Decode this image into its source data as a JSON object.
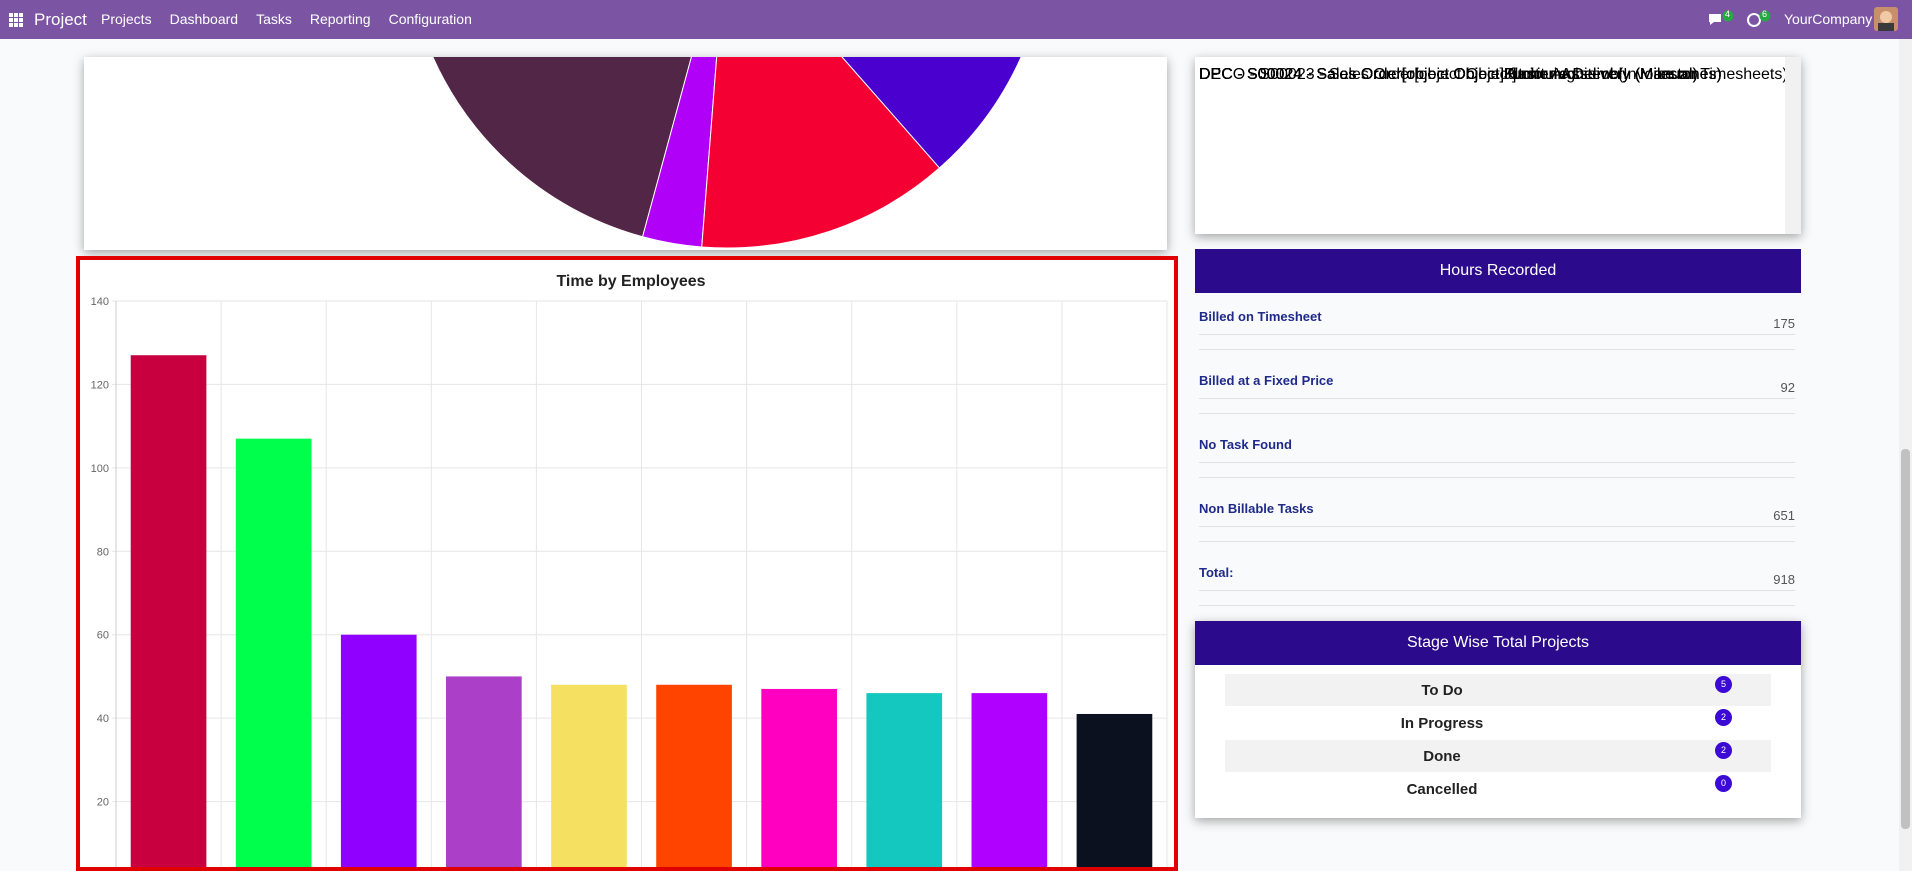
{
  "navbar": {
    "app": "Project",
    "menu": [
      "Projects",
      "Dashboard",
      "Tasks",
      "Reporting",
      "Configuration"
    ],
    "messages": "4",
    "activities": "6",
    "company": "YourCompany"
  },
  "orders_table": {
    "rows": [
      [
        "DECO - S00023 - Sales Order[object Object]",
        "Furniture Delivery (Manual)"
      ],
      [
        "DPC - S00024 - Sales Order[object Object]",
        "Plastering"
      ],
      [
        "DPC - S00024 - Sales Order[object Object]",
        "Junior Architect (Invoice on Timesheets)"
      ],
      [
        "DPC - S00024 - Sales Order[object Object]",
        "Furniture Delivery (Manual)"
      ],
      [
        "DPC - S00024 - Sales Order[object Object]",
        "Kitchen Assembly (Milestones)"
      ],
      [
        "DPC - S00024 - Sales Order[object Object]",
        "Kitchen Assembly (Milestones)"
      ]
    ]
  },
  "hours": {
    "title": "Hours Recorded",
    "rows": [
      {
        "label": "Billed on Timesheet",
        "value": 175
      },
      {
        "label": "Billed at a Fixed Price",
        "value": 92
      },
      {
        "label": "No Task Found",
        "value": null
      },
      {
        "label": "Non Billable Tasks",
        "value": 651
      },
      {
        "label": "Total:",
        "value": 918
      }
    ]
  },
  "stages": {
    "title": "Stage Wise Total Projects",
    "rows": [
      {
        "label": "To Do",
        "count": 5
      },
      {
        "label": "In Progress",
        "count": 2
      },
      {
        "label": "Done",
        "count": 2
      },
      {
        "label": "Cancelled",
        "count": 0
      }
    ]
  },
  "chart_data": {
    "type": "bar",
    "title": "Time by Employees",
    "categories": [
      null,
      null,
      null,
      null,
      null,
      null,
      null,
      null,
      null,
      null
    ],
    "values": [
      127,
      107,
      60,
      50,
      48,
      48,
      47,
      46,
      46,
      41
    ],
    "colors": [
      "#c8003f",
      "#00ff4c",
      "#8f00ff",
      "#ab3fc8",
      "#f5e062",
      "#ff4400",
      "#ff00c0",
      "#14c8c0",
      "#b000ff",
      "#0b111f"
    ],
    "ylim": [
      0,
      140
    ],
    "yticks": [
      20,
      40,
      60,
      80,
      100,
      120,
      140
    ],
    "grid": true
  }
}
